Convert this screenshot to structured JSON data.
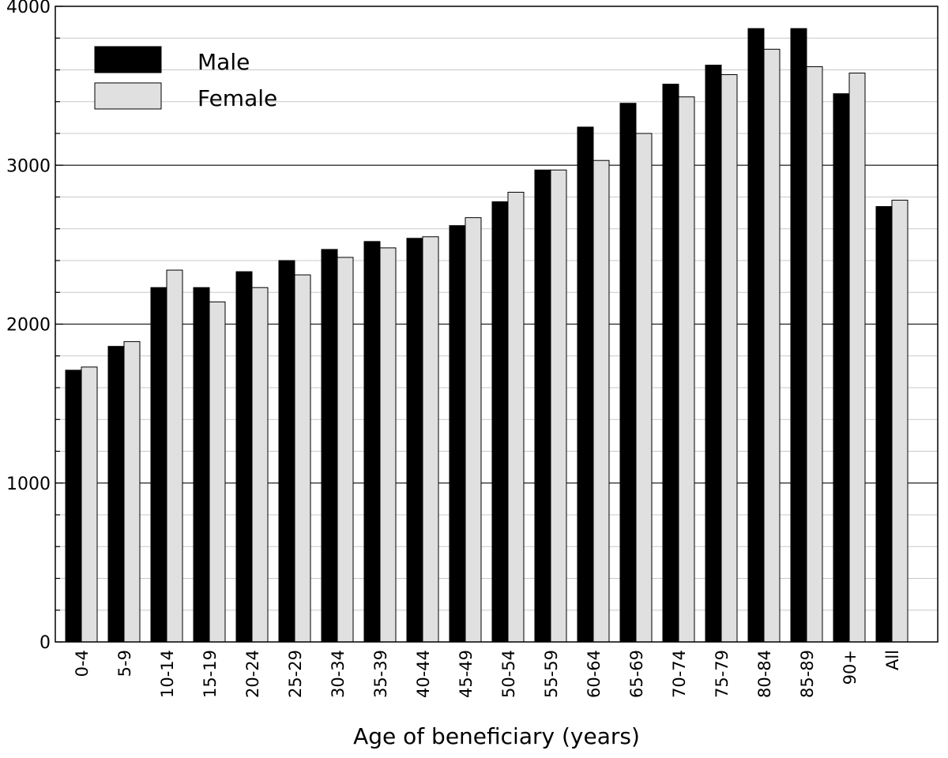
{
  "chart_data": {
    "type": "bar",
    "title": "",
    "xlabel": "Age of beneficiary (years)",
    "ylabel": "",
    "ylim": [
      0,
      4000
    ],
    "y_major_ticks": [
      0,
      1000,
      2000,
      3000,
      4000
    ],
    "y_minor_step": 200,
    "grid": true,
    "legend_position": "top-left",
    "categories": [
      "0-4",
      "5-9",
      "10-14",
      "15-19",
      "20-24",
      "25-29",
      "30-34",
      "35-39",
      "40-44",
      "45-49",
      "50-54",
      "55-59",
      "60-64",
      "65-69",
      "70-74",
      "75-79",
      "80-84",
      "85-89",
      "90+",
      "All"
    ],
    "series": [
      {
        "name": "Male",
        "color": "#000000",
        "values": [
          1710,
          1860,
          2230,
          2230,
          2330,
          2400,
          2470,
          2520,
          2540,
          2620,
          2770,
          2970,
          3240,
          3390,
          3510,
          3630,
          3860,
          3860,
          3450,
          2740
        ]
      },
      {
        "name": "Female",
        "color": "#e0e0e0",
        "values": [
          1730,
          1890,
          2340,
          2140,
          2230,
          2310,
          2420,
          2480,
          2550,
          2670,
          2830,
          2970,
          3030,
          3200,
          3430,
          3570,
          3730,
          3620,
          3580,
          2780
        ]
      }
    ]
  }
}
